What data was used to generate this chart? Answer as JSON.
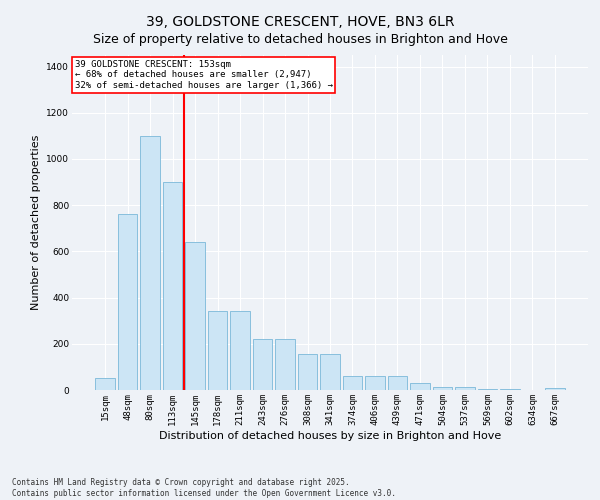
{
  "title": "39, GOLDSTONE CRESCENT, HOVE, BN3 6LR",
  "subtitle": "Size of property relative to detached houses in Brighton and Hove",
  "xlabel": "Distribution of detached houses by size in Brighton and Hove",
  "ylabel": "Number of detached properties",
  "categories": [
    "15sqm",
    "48sqm",
    "80sqm",
    "113sqm",
    "145sqm",
    "178sqm",
    "211sqm",
    "243sqm",
    "276sqm",
    "308sqm",
    "341sqm",
    "374sqm",
    "406sqm",
    "439sqm",
    "471sqm",
    "504sqm",
    "537sqm",
    "569sqm",
    "602sqm",
    "634sqm",
    "667sqm"
  ],
  "values": [
    50,
    760,
    1100,
    900,
    640,
    340,
    340,
    220,
    220,
    155,
    155,
    60,
    60,
    60,
    30,
    15,
    15,
    5,
    5,
    2,
    10
  ],
  "bar_color": "#cce5f5",
  "bar_edge_color": "#7ab8d9",
  "red_line_index": 4.0,
  "annotation_line1": "39 GOLDSTONE CRESCENT: 153sqm",
  "annotation_line2": "← 68% of detached houses are smaller (2,947)",
  "annotation_line3": "32% of semi-detached houses are larger (1,366) →",
  "ylim": [
    0,
    1450
  ],
  "yticks": [
    0,
    200,
    400,
    600,
    800,
    1000,
    1200,
    1400
  ],
  "background_color": "#eef2f7",
  "grid_color": "#ffffff",
  "footnote": "Contains HM Land Registry data © Crown copyright and database right 2025.\nContains public sector information licensed under the Open Government Licence v3.0.",
  "title_fontsize": 10,
  "xlabel_fontsize": 8,
  "ylabel_fontsize": 8,
  "tick_fontsize": 6.5,
  "annot_fontsize": 6.5
}
